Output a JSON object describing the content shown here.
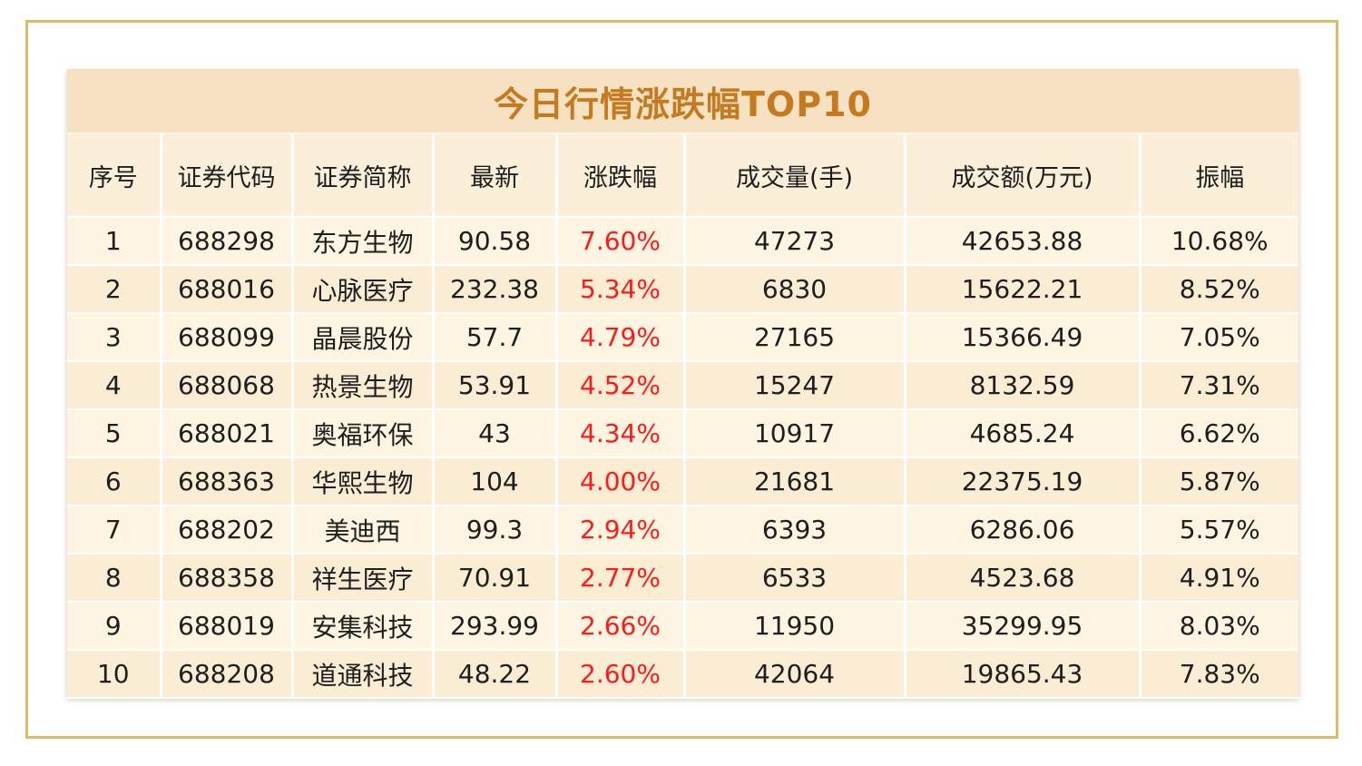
{
  "title": "今日行情涨跌幅TOP10",
  "columns": [
    "序号",
    "证券代码",
    "证券简称",
    "最新",
    "涨跌幅",
    "成交量(手)",
    "成交额(万元)",
    "振幅"
  ],
  "rows": [
    {
      "index": "1",
      "code": "688298",
      "name": "东方生物",
      "latest": "90.58",
      "change": "7.60%",
      "volume": "47273",
      "turnover": "42653.88",
      "amplitude": "10.68%"
    },
    {
      "index": "2",
      "code": "688016",
      "name": "心脉医疗",
      "latest": "232.38",
      "change": "5.34%",
      "volume": "6830",
      "turnover": "15622.21",
      "amplitude": "8.52%"
    },
    {
      "index": "3",
      "code": "688099",
      "name": "晶晨股份",
      "latest": "57.7",
      "change": "4.79%",
      "volume": "27165",
      "turnover": "15366.49",
      "amplitude": "7.05%"
    },
    {
      "index": "4",
      "code": "688068",
      "name": "热景生物",
      "latest": "53.91",
      "change": "4.52%",
      "volume": "15247",
      "turnover": "8132.59",
      "amplitude": "7.31%"
    },
    {
      "index": "5",
      "code": "688021",
      "name": "奥福环保",
      "latest": "43",
      "change": "4.34%",
      "volume": "10917",
      "turnover": "4685.24",
      "amplitude": "6.62%"
    },
    {
      "index": "6",
      "code": "688363",
      "name": "华熙生物",
      "latest": "104",
      "change": "4.00%",
      "volume": "21681",
      "turnover": "22375.19",
      "amplitude": "5.87%"
    },
    {
      "index": "7",
      "code": "688202",
      "name": "美迪西",
      "latest": "99.3",
      "change": "2.94%",
      "volume": "6393",
      "turnover": "6286.06",
      "amplitude": "5.57%"
    },
    {
      "index": "8",
      "code": "688358",
      "name": "祥生医疗",
      "latest": "70.91",
      "change": "2.77%",
      "volume": "6533",
      "turnover": "4523.68",
      "amplitude": "4.91%"
    },
    {
      "index": "9",
      "code": "688019",
      "name": "安集科技",
      "latest": "293.99",
      "change": "2.66%",
      "volume": "11950",
      "turnover": "35299.95",
      "amplitude": "8.03%"
    },
    {
      "index": "10",
      "code": "688208",
      "name": "道通科技",
      "latest": "48.22",
      "change": "2.60%",
      "volume": "42064",
      "turnover": "19865.43",
      "amplitude": "7.83%"
    }
  ],
  "colors": {
    "frame_border": "#d9bd6a",
    "title_bg": "#f6e2c2",
    "title_text": "#c67a1f",
    "header_bg": "#fbefd9",
    "row_odd_bg": "#fdf5e1",
    "row_even_bg": "#fbecd4",
    "change_text": "#ff1a1a",
    "body_text": "#1e1e1e"
  }
}
